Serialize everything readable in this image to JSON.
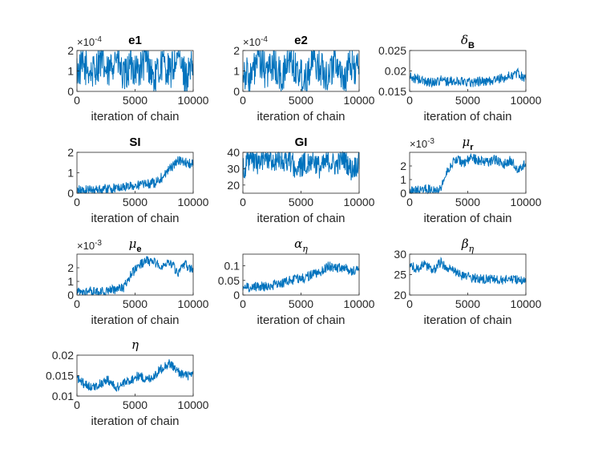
{
  "figure": {
    "background": "#ffffff",
    "line_color": "#0072BD",
    "axis_color": "#262626"
  },
  "chart_data": [
    {
      "type": "line",
      "title": "e1",
      "xlabel": "iteration of chain",
      "xlim": [
        0,
        10000
      ],
      "xticks": [
        0,
        5000,
        10000
      ],
      "ylim": [
        0,
        0.0002
      ],
      "yticks": [
        0,
        1,
        2
      ],
      "multiplier": "×10",
      "multiplier_exp": "-4",
      "series": [
        {
          "values": [
            0.0001,
            0.00012,
            9e-05,
            0.00015,
            8e-05,
            0.00018,
            6e-05,
            0.00013,
            0.0001,
            0.00016,
            5e-05,
            0.00014,
            9e-05,
            0.00017,
            7e-05,
            0.00012
          ]
        }
      ]
    },
    {
      "type": "line",
      "title": "e2",
      "xlabel": "iteration of chain",
      "xlim": [
        0,
        10000
      ],
      "xticks": [
        0,
        5000,
        10000
      ],
      "ylim": [
        0,
        0.0002
      ],
      "yticks": [
        0,
        1,
        2
      ],
      "multiplier": "×10",
      "multiplier_exp": "-4",
      "series": [
        {
          "values": [
            0.00011,
            6e-05,
            0.00016,
            9e-05,
            0.00014,
            5e-05,
            0.00017,
            0.0001,
            7e-05,
            0.00015,
            0.00012,
            8e-05,
            0.00016,
            6e-05,
            0.00013,
            0.0001
          ]
        }
      ]
    },
    {
      "type": "line",
      "title": "δ",
      "title_sub": "B",
      "xlabel": "iteration of chain",
      "xlim": [
        0,
        10000
      ],
      "xticks": [
        0,
        5000,
        10000
      ],
      "ylim": [
        0.015,
        0.025
      ],
      "yticks": [
        0.015,
        0.02,
        0.025
      ],
      "series": [
        {
          "values": [
            0.0185,
            0.018,
            0.0175,
            0.0172,
            0.0178,
            0.0174,
            0.0173,
            0.0176,
            0.0172,
            0.0175,
            0.0174,
            0.0178,
            0.0182,
            0.0188,
            0.0195,
            0.018
          ]
        }
      ]
    },
    {
      "type": "line",
      "title": "SI",
      "xlabel": "iteration of chain",
      "xlim": [
        0,
        10000
      ],
      "xticks": [
        0,
        5000,
        10000
      ],
      "ylim": [
        0,
        2
      ],
      "yticks": [
        0,
        1,
        2
      ],
      "series": [
        {
          "values": [
            0.15,
            0.15,
            0.18,
            0.2,
            0.22,
            0.25,
            0.3,
            0.35,
            0.4,
            0.45,
            0.5,
            0.8,
            1.2,
            1.6,
            1.5,
            1.4
          ]
        }
      ]
    },
    {
      "type": "line",
      "title": "GI",
      "xlabel": "iteration of chain",
      "xlim": [
        0,
        10000
      ],
      "xticks": [
        0,
        5000,
        10000
      ],
      "ylim": [
        15,
        40
      ],
      "yticks": [
        20,
        30,
        40
      ],
      "series": [
        {
          "values": [
            30,
            36,
            33,
            37,
            35,
            34,
            36,
            29,
            33,
            36,
            30,
            35,
            32,
            37,
            29,
            34
          ]
        }
      ]
    },
    {
      "type": "line",
      "title": "μ",
      "title_sub": "r",
      "xlabel": "iteration of chain",
      "xlim": [
        0,
        10000
      ],
      "xticks": [
        0,
        5000,
        10000
      ],
      "ylim": [
        0,
        0.003
      ],
      "yticks": [
        0,
        1,
        2
      ],
      "multiplier": "×10",
      "multiplier_exp": "-3",
      "series": [
        {
          "values": [
            0.0002,
            0.0002,
            0.0003,
            0.0003,
            0.0004,
            0.0018,
            0.0025,
            0.0022,
            0.0026,
            0.0024,
            0.0023,
            0.0025,
            0.0021,
            0.0024,
            0.0017,
            0.0022
          ]
        }
      ]
    },
    {
      "type": "line",
      "title": "μ",
      "title_sub": "e",
      "xlabel": "iteration of chain",
      "xlim": [
        0,
        10000
      ],
      "xticks": [
        0,
        5000,
        10000
      ],
      "ylim": [
        0,
        0.003
      ],
      "yticks": [
        0,
        1,
        2
      ],
      "multiplier": "×10",
      "multiplier_exp": "-3",
      "series": [
        {
          "values": [
            0.0002,
            0.0002,
            0.0003,
            0.0002,
            0.0003,
            0.0004,
            0.0005,
            0.0015,
            0.0022,
            0.0025,
            0.0024,
            0.0021,
            0.0025,
            0.0016,
            0.0022,
            0.0018
          ]
        }
      ]
    },
    {
      "type": "line",
      "title": "α",
      "title_sub": "η",
      "xlabel": "iteration of chain",
      "xlim": [
        0,
        10000
      ],
      "xticks": [
        0,
        5000,
        10000
      ],
      "ylim": [
        0,
        0.14
      ],
      "yticks": [
        0,
        0.05,
        0.1
      ],
      "series": [
        {
          "values": [
            0.03,
            0.025,
            0.03,
            0.028,
            0.035,
            0.04,
            0.05,
            0.055,
            0.06,
            0.07,
            0.08,
            0.1,
            0.09,
            0.095,
            0.08,
            0.09
          ]
        }
      ]
    },
    {
      "type": "line",
      "title": "β",
      "title_sub": "η",
      "xlabel": "iteration of chain",
      "xlim": [
        0,
        10000
      ],
      "xticks": [
        0,
        5000,
        10000
      ],
      "ylim": [
        20,
        30
      ],
      "yticks": [
        20,
        25,
        30
      ],
      "series": [
        {
          "values": [
            27,
            26.5,
            27.5,
            26,
            28,
            26.5,
            25.5,
            24.5,
            24.2,
            24,
            23.8,
            24,
            23.5,
            24,
            23.6,
            23.5
          ]
        }
      ]
    },
    {
      "type": "line",
      "title": "η",
      "xlabel": "iteration of chain",
      "xlim": [
        0,
        10000
      ],
      "xticks": [
        0,
        5000,
        10000
      ],
      "ylim": [
        0.01,
        0.02
      ],
      "yticks": [
        0.01,
        0.015,
        0.02
      ],
      "series": [
        {
          "values": [
            0.014,
            0.013,
            0.012,
            0.013,
            0.014,
            0.012,
            0.013,
            0.014,
            0.015,
            0.014,
            0.015,
            0.017,
            0.018,
            0.016,
            0.015,
            0.015
          ]
        }
      ]
    }
  ]
}
